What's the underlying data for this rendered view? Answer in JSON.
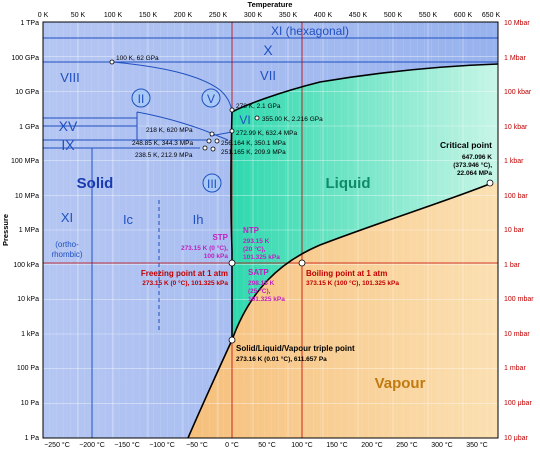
{
  "axes": {
    "top_title": "Temperature",
    "top_ticks": [
      "0 K",
      "50 K",
      "100 K",
      "150 K",
      "200 K",
      "250 K",
      "300 K",
      "350 K",
      "400 K",
      "450 K",
      "500 K",
      "550 K",
      "600 K",
      "650 K"
    ],
    "bottom_ticks": [
      "−250 °C",
      "−200 °C",
      "−150 °C",
      "−100 °C",
      "−50 °C",
      "0 °C",
      "50 °C",
      "100 °C",
      "150 °C",
      "200 °C",
      "250 °C",
      "300 °C",
      "350 °C"
    ],
    "left_title": "Pressure",
    "left_ticks": [
      "1 TPa",
      "100 GPa",
      "10 GPa",
      "1 GPa",
      "100 MPa",
      "10 MPa",
      "1 MPa",
      "100 kPa",
      "10 kPa",
      "1 kPa",
      "100 Pa",
      "10 Pa",
      "1 Pa"
    ],
    "right_ticks": [
      "10 Mbar",
      "1 Mbar",
      "100 kbar",
      "10 kbar",
      "1 kbar",
      "100 bar",
      "10 bar",
      "1 bar",
      "100 mbar",
      "10 mbar",
      "1 mbar",
      "100 μbar",
      "10 μbar"
    ]
  },
  "phases": {
    "solid": "Solid",
    "liquid": "Liquid",
    "vapour": "Vapour",
    "xi_hex": "XI (hexagonal)",
    "x": "X",
    "viii": "VIII",
    "vii": "VII",
    "vi": "VI",
    "xv": "XV",
    "ix": "IX",
    "ii": "II",
    "v": "V",
    "iii": "III",
    "xi_ortho": "XI",
    "ortho1": "(ortho-",
    "ortho2": "rhombic)",
    "ic": "Ic",
    "ih": "Ih"
  },
  "points": {
    "p100k": "100 K, 62 GPa",
    "p278": "278 K, 2.1 GPa",
    "p355": "355.00 K, 2.216 GPa",
    "p218": "218 K, 620 MPa",
    "p272": "272.99 K, 632.4 MPa",
    "p248": "248.85 K, 344.3 MPa",
    "p256": "256.164 K, 350.1 MPa",
    "p238": "238.5 K, 212.9 MPa",
    "p251": "251.165 K, 209.9 MPa",
    "critical_title": "Critical point",
    "critical_1": "647.096 K",
    "critical_2": "(373.946 °C),",
    "critical_3": "22.064 MPa",
    "stp_title": "STP",
    "stp_1": "273.15 K (0 °C),",
    "stp_2": "100 kPa",
    "ntp_title": "NTP",
    "ntp_1": "293.15 K",
    "ntp_2": "(20 °C),",
    "ntp_3": "101.325 kPa",
    "satp_title": "SATP",
    "satp_1": "298.15 K",
    "satp_2": "(25 °C),",
    "satp_3": "101.325 kPa",
    "freezing_title": "Freezing point at 1 atm",
    "freezing_1": "273.15 K (0 °C), 101.325 kPa",
    "boiling_title": "Boiling point at 1 atm",
    "boiling_1": "373.15 K (100 °C), 101.325 kPa",
    "triple_title": "Solid/Liquid/Vapour triple point",
    "triple_1": "273.16 K (0.01 °C), 611.657 Pa"
  },
  "colors": {
    "solid": "#a8bff0",
    "liquid": "#3fe0b8",
    "vapour": "#f7c98a",
    "line_blue": "#2050c0",
    "line_red": "#c00000",
    "magenta": "#c020c0"
  }
}
